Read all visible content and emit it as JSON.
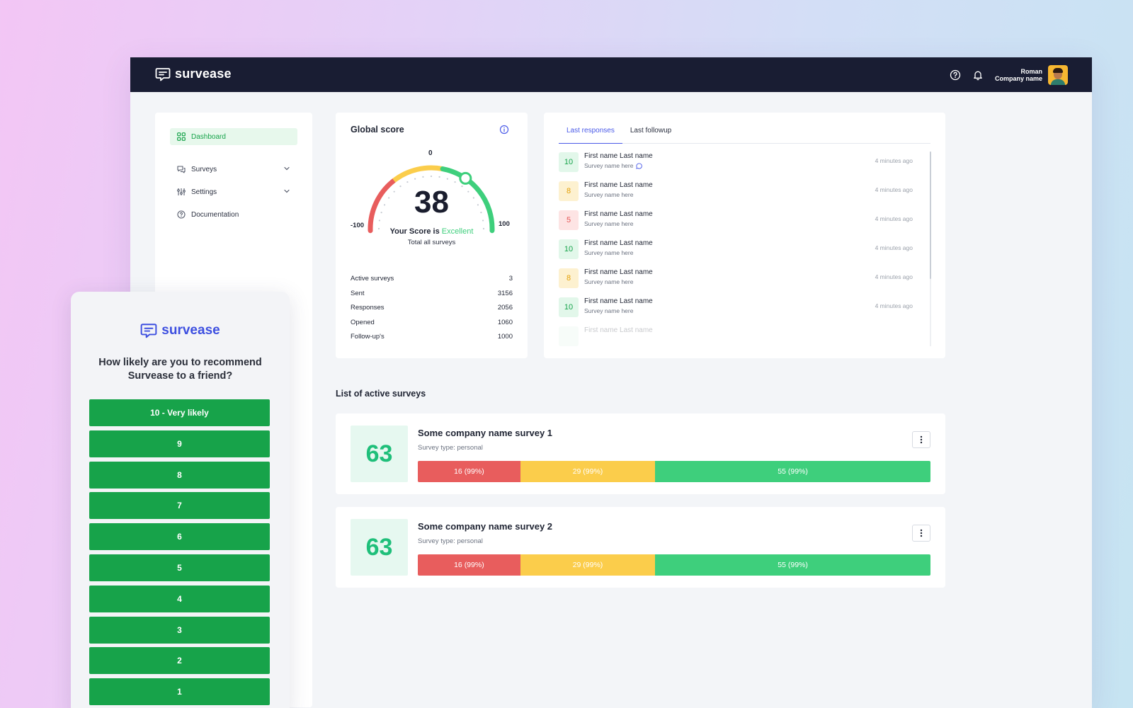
{
  "header": {
    "brand": "survease",
    "user_name": "Roman",
    "company": "Company name"
  },
  "sidebar": {
    "items": [
      {
        "label": "Dashboard",
        "icon": "grid-icon"
      },
      {
        "label": "Surveys",
        "icon": "chat-icon"
      },
      {
        "label": "Settings",
        "icon": "sliders-icon"
      },
      {
        "label": "Documentation",
        "icon": "help-circle-icon"
      }
    ]
  },
  "global_score": {
    "title": "Global score",
    "score": "38",
    "min_label": "-100",
    "mid_label": "0",
    "max_label": "100",
    "score_prefix": "Your Score is",
    "score_rating": "Excellent",
    "subtitle": "Total all surveys",
    "gauge_value": 38,
    "gauge_min": -100,
    "gauge_max": 100,
    "stats": [
      {
        "label": "Active surveys",
        "value": "3"
      },
      {
        "label": "Sent",
        "value": "3156"
      },
      {
        "label": "Responses",
        "value": "2056"
      },
      {
        "label": "Opened",
        "value": "1060"
      },
      {
        "label": "Follow-up's",
        "value": "1000"
      }
    ]
  },
  "responses": {
    "tabs": [
      "Last responses",
      "Last followup"
    ],
    "items": [
      {
        "score": "10",
        "name": "First name Last name",
        "survey": "Survey name here",
        "time": "4 minutes ago"
      },
      {
        "score": "8",
        "name": "First name Last name",
        "survey": "Survey name here",
        "time": "4 minutes ago"
      },
      {
        "score": "5",
        "name": "First name Last name",
        "survey": "Survey name here",
        "time": "4 minutes ago"
      },
      {
        "score": "10",
        "name": "First name Last name",
        "survey": "Survey name here",
        "time": "4 minutes ago"
      },
      {
        "score": "8",
        "name": "First name Last name",
        "survey": "Survey name here",
        "time": "4 minutes ago"
      },
      {
        "score": "10",
        "name": "First name Last name",
        "survey": "Survey name here",
        "time": "4 minutes ago"
      },
      {
        "score": "",
        "name": "First name Last name",
        "survey": "",
        "time": ""
      }
    ]
  },
  "active_surveys": {
    "title": "List of active surveys",
    "surveys": [
      {
        "score": "63",
        "name": "Some company name survey 1",
        "type": "Survey type: personal",
        "segments": [
          {
            "label": "16 (99%)",
            "share": 0.2
          },
          {
            "label": "29 (99%)",
            "share": 0.263
          },
          {
            "label": "55 (99%)",
            "share": 0.537
          }
        ]
      },
      {
        "score": "63",
        "name": "Some company name survey 2",
        "type": "Survey type: personal",
        "segments": [
          {
            "label": "16 (99%)",
            "share": 0.2
          },
          {
            "label": "29 (99%)",
            "share": 0.263
          },
          {
            "label": "55 (99%)",
            "share": 0.537
          }
        ]
      }
    ]
  },
  "widget": {
    "brand": "survease",
    "question": "How likely are you to recommend Survease to a friend?",
    "options": [
      "10 - Very likely",
      "9",
      "8",
      "7",
      "6",
      "5",
      "4",
      "3",
      "2",
      "1"
    ]
  },
  "colors": {
    "topbar": "#191d33",
    "accent_green": "#16a34a",
    "detractor": "#e85d5d",
    "passive": "#fbcd4b",
    "promoter": "#3ecf7c",
    "link_blue": "#4a5ae8"
  }
}
